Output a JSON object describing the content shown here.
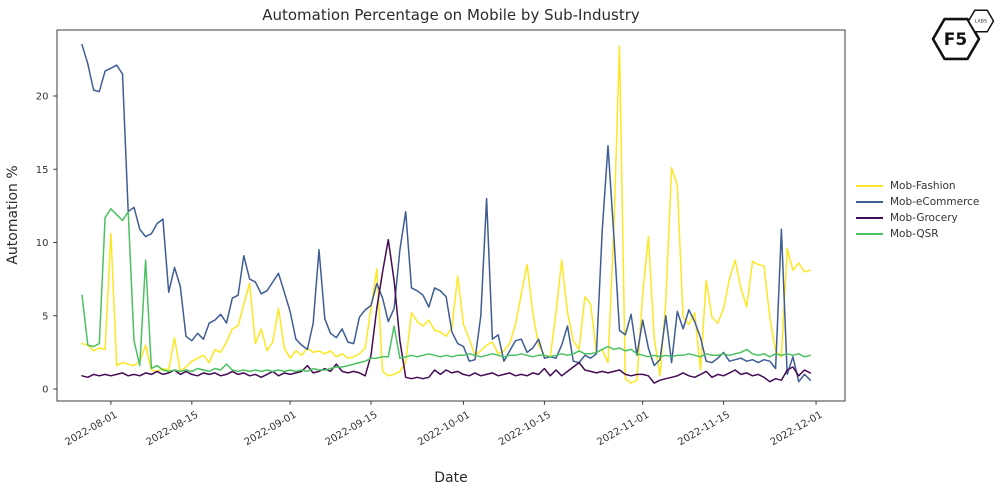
{
  "title": "Automation Percentage on Mobile by Sub-Industry",
  "axes": {
    "x_label": "Date",
    "y_label": "Automation %",
    "x_ticks": [
      "2022-08-01",
      "2022-08-15",
      "2022-09-01",
      "2022-09-15",
      "2022-10-01",
      "2022-10-15",
      "2022-11-01",
      "2022-11-15",
      "2022-12-01"
    ],
    "y_ticks": [
      0,
      5,
      10,
      15,
      20
    ]
  },
  "legend": {
    "items": [
      {
        "label": "Mob-Fashion",
        "color": "#fde725"
      },
      {
        "label": "Mob-eCommerce",
        "color": "#3f5d94"
      },
      {
        "label": "Mob-Grocery",
        "color": "#440c54"
      },
      {
        "label": "Mob-QSR",
        "color": "#4bc162"
      }
    ]
  },
  "logo": {
    "brand": "F5",
    "sub": "LABS"
  },
  "chart_data": {
    "type": "line",
    "title": "Automation Percentage on Mobile by Sub-Industry",
    "xlabel": "Date",
    "ylabel": "Automation %",
    "ylim": [
      -0.9,
      24.6
    ],
    "grid": false,
    "legend_position": "right",
    "x": [
      "2022-07-27",
      "2022-07-28",
      "2022-07-29",
      "2022-07-30",
      "2022-07-31",
      "2022-08-01",
      "2022-08-02",
      "2022-08-03",
      "2022-08-04",
      "2022-08-05",
      "2022-08-06",
      "2022-08-07",
      "2022-08-08",
      "2022-08-09",
      "2022-08-10",
      "2022-08-11",
      "2022-08-12",
      "2022-08-13",
      "2022-08-14",
      "2022-08-15",
      "2022-08-16",
      "2022-08-17",
      "2022-08-18",
      "2022-08-19",
      "2022-08-20",
      "2022-08-21",
      "2022-08-22",
      "2022-08-23",
      "2022-08-24",
      "2022-08-25",
      "2022-08-26",
      "2022-08-27",
      "2022-08-28",
      "2022-08-29",
      "2022-08-30",
      "2022-08-31",
      "2022-09-01",
      "2022-09-02",
      "2022-09-03",
      "2022-09-04",
      "2022-09-05",
      "2022-09-06",
      "2022-09-07",
      "2022-09-08",
      "2022-09-09",
      "2022-09-10",
      "2022-09-11",
      "2022-09-12",
      "2022-09-13",
      "2022-09-14",
      "2022-09-15",
      "2022-09-16",
      "2022-09-17",
      "2022-09-18",
      "2022-09-19",
      "2022-09-20",
      "2022-09-21",
      "2022-09-22",
      "2022-09-23",
      "2022-09-24",
      "2022-09-25",
      "2022-09-26",
      "2022-09-27",
      "2022-09-28",
      "2022-09-29",
      "2022-09-30",
      "2022-10-01",
      "2022-10-02",
      "2022-10-03",
      "2022-10-04",
      "2022-10-05",
      "2022-10-06",
      "2022-10-07",
      "2022-10-08",
      "2022-10-09",
      "2022-10-10",
      "2022-10-11",
      "2022-10-12",
      "2022-10-13",
      "2022-10-14",
      "2022-10-15",
      "2022-10-16",
      "2022-10-17",
      "2022-10-18",
      "2022-10-19",
      "2022-10-20",
      "2022-10-21",
      "2022-10-22",
      "2022-10-23",
      "2022-10-24",
      "2022-10-25",
      "2022-10-26",
      "2022-10-27",
      "2022-10-28",
      "2022-10-29",
      "2022-10-30",
      "2022-10-31",
      "2022-11-01",
      "2022-11-02",
      "2022-11-03",
      "2022-11-04",
      "2022-11-05",
      "2022-11-06",
      "2022-11-07",
      "2022-11-08",
      "2022-11-09",
      "2022-11-10",
      "2022-11-11",
      "2022-11-12",
      "2022-11-13",
      "2022-11-14",
      "2022-11-15",
      "2022-11-16",
      "2022-11-17",
      "2022-11-18",
      "2022-11-19",
      "2022-11-20",
      "2022-11-21",
      "2022-11-22",
      "2022-11-23",
      "2022-11-24",
      "2022-11-25",
      "2022-11-26",
      "2022-11-27",
      "2022-11-28",
      "2022-11-29",
      "2022-11-30"
    ],
    "series": [
      {
        "name": "Mob-Fashion",
        "color": "#fde725",
        "values": [
          3.1,
          3.0,
          2.6,
          2.8,
          2.7,
          10.6,
          1.6,
          1.8,
          1.7,
          1.6,
          1.9,
          3.0,
          1.3,
          1.2,
          1.4,
          1.3,
          3.5,
          1.2,
          1.5,
          1.9,
          2.1,
          2.3,
          1.8,
          2.7,
          2.5,
          3.2,
          4.1,
          4.3,
          5.8,
          7.2,
          3.1,
          4.1,
          2.6,
          3.2,
          5.5,
          2.8,
          2.1,
          2.6,
          2.3,
          2.8,
          2.5,
          2.6,
          2.4,
          2.6,
          2.2,
          2.4,
          2.1,
          2.2,
          2.4,
          2.8,
          5.5,
          8.2,
          1.2,
          0.9,
          1.0,
          1.2,
          1.8,
          5.2,
          4.6,
          4.3,
          4.7,
          4.0,
          3.9,
          3.6,
          4.2,
          7.7,
          4.4,
          3.4,
          2.3,
          2.6,
          3.0,
          3.2,
          2.4,
          2.6,
          3.1,
          4.4,
          6.5,
          8.5,
          5.2,
          3.0,
          2.3,
          2.2,
          5.2,
          8.8,
          5.2,
          3.3,
          2.7,
          6.3,
          5.8,
          2.5,
          2.7,
          1.8,
          10.8,
          23.4,
          0.7,
          0.4,
          0.6,
          6.5,
          10.4,
          3.5,
          0.9,
          6.0,
          15.1,
          13.9,
          4.9,
          4.4,
          5.2,
          1.3,
          7.4,
          4.9,
          4.5,
          5.5,
          7.5,
          8.8,
          6.9,
          5.6,
          8.7,
          8.5,
          8.4,
          4.9,
          2.6,
          2.2,
          9.6,
          8.1,
          8.6,
          8.0,
          8.1
        ]
      },
      {
        "name": "Mob-eCommerce",
        "color": "#3f5d94",
        "values": [
          23.5,
          22.2,
          20.4,
          20.3,
          21.7,
          21.9,
          22.1,
          21.5,
          12.1,
          12.4,
          10.9,
          10.4,
          10.6,
          11.3,
          11.6,
          6.6,
          8.3,
          7.0,
          3.6,
          3.3,
          3.8,
          3.4,
          4.5,
          4.7,
          5.1,
          4.5,
          6.2,
          6.4,
          9.1,
          7.5,
          7.3,
          6.5,
          6.7,
          7.3,
          7.9,
          6.6,
          5.3,
          3.4,
          3.0,
          2.7,
          4.5,
          9.5,
          4.8,
          3.8,
          3.5,
          4.1,
          3.2,
          3.1,
          4.9,
          5.4,
          5.7,
          7.2,
          6.2,
          4.6,
          5.5,
          9.5,
          12.1,
          6.9,
          6.7,
          6.4,
          5.6,
          6.9,
          6.7,
          6.3,
          3.9,
          3.1,
          2.9,
          1.9,
          2.0,
          5.0,
          13.0,
          3.4,
          3.7,
          1.9,
          2.6,
          3.3,
          3.4,
          2.5,
          2.8,
          3.4,
          2.1,
          2.2,
          2.1,
          3.0,
          4.3,
          1.9,
          1.8,
          2.3,
          2.1,
          2.4,
          10.8,
          16.6,
          10.5,
          4.0,
          3.7,
          5.1,
          2.3,
          4.7,
          2.8,
          1.6,
          2.0,
          5.0,
          1.8,
          5.3,
          4.1,
          5.4,
          4.6,
          3.5,
          1.9,
          1.8,
          2.1,
          2.5,
          1.9,
          2.0,
          2.1,
          1.9,
          2.0,
          1.8,
          2.0,
          1.9,
          1.4,
          10.9,
          1.0,
          2.2,
          0.5,
          1.0,
          0.6
        ]
      },
      {
        "name": "Mob-Grocery",
        "color": "#440c54",
        "values": [
          0.9,
          0.8,
          1.0,
          0.9,
          1.0,
          0.9,
          1.0,
          1.1,
          0.9,
          1.0,
          0.9,
          1.1,
          1.0,
          1.2,
          1.0,
          1.1,
          1.3,
          1.0,
          1.2,
          1.0,
          0.9,
          1.1,
          1.0,
          1.1,
          0.9,
          1.0,
          1.2,
          1.0,
          1.1,
          0.9,
          1.0,
          0.8,
          1.0,
          1.2,
          0.9,
          1.1,
          1.0,
          1.1,
          1.2,
          1.6,
          1.1,
          1.2,
          1.4,
          1.2,
          1.7,
          1.2,
          1.1,
          1.2,
          1.1,
          0.9,
          2.3,
          5.5,
          8.0,
          10.2,
          7.4,
          3.3,
          0.8,
          0.7,
          0.8,
          0.7,
          0.8,
          1.3,
          1.0,
          1.3,
          1.1,
          1.2,
          1.0,
          0.9,
          1.1,
          0.9,
          1.0,
          1.1,
          0.9,
          1.0,
          1.1,
          0.9,
          1.0,
          0.9,
          1.1,
          1.0,
          1.4,
          0.9,
          1.3,
          0.9,
          1.2,
          1.5,
          1.8,
          1.3,
          1.2,
          1.1,
          1.2,
          1.1,
          1.2,
          1.3,
          1.0,
          0.9,
          1.0,
          1.0,
          0.9,
          0.4,
          0.6,
          0.7,
          0.8,
          0.9,
          1.1,
          0.9,
          0.8,
          1.0,
          1.2,
          0.8,
          1.0,
          0.9,
          1.1,
          1.3,
          1.0,
          1.1,
          0.9,
          1.0,
          0.8,
          0.5,
          0.7,
          0.6,
          1.3,
          1.5,
          0.9,
          1.3,
          1.1
        ]
      },
      {
        "name": "Mob-QSR",
        "color": "#4bc162",
        "values": [
          6.4,
          3.0,
          2.9,
          3.1,
          11.7,
          12.3,
          11.9,
          11.5,
          12.1,
          3.3,
          1.6,
          8.8,
          1.4,
          1.6,
          1.3,
          1.2,
          1.3,
          1.2,
          1.3,
          1.2,
          1.4,
          1.3,
          1.2,
          1.4,
          1.3,
          1.7,
          1.3,
          1.2,
          1.3,
          1.2,
          1.3,
          1.2,
          1.3,
          1.2,
          1.3,
          1.2,
          1.3,
          1.2,
          1.3,
          1.2,
          1.4,
          1.3,
          1.3,
          1.4,
          1.5,
          1.5,
          1.6,
          1.7,
          1.8,
          1.9,
          2.1,
          2.1,
          2.2,
          2.2,
          4.3,
          2.1,
          2.2,
          2.3,
          2.2,
          2.3,
          2.4,
          2.3,
          2.2,
          2.3,
          2.2,
          2.3,
          2.3,
          2.4,
          2.3,
          2.2,
          2.3,
          2.4,
          2.3,
          2.2,
          2.3,
          2.3,
          2.4,
          2.3,
          2.2,
          2.3,
          2.3,
          2.2,
          2.3,
          2.4,
          2.3,
          2.4,
          2.6,
          2.4,
          2.4,
          2.5,
          2.7,
          2.9,
          2.7,
          2.8,
          2.6,
          2.7,
          2.4,
          2.3,
          2.2,
          2.3,
          2.2,
          2.3,
          2.2,
          2.3,
          2.3,
          2.4,
          2.3,
          2.2,
          2.4,
          2.3,
          2.3,
          2.4,
          2.3,
          2.4,
          2.5,
          2.7,
          2.4,
          2.3,
          2.4,
          2.2,
          2.4,
          2.3,
          2.4,
          2.3,
          2.4,
          2.2,
          2.3
        ]
      }
    ]
  }
}
